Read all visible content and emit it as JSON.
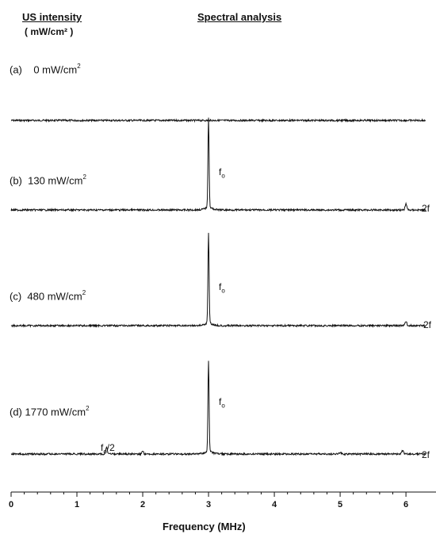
{
  "headers": {
    "left_title": "US intensity",
    "left_unit": "( mW/cm² )",
    "right_title": "Spectral analysis"
  },
  "chart_data": {
    "type": "line",
    "xlabel": "Frequency (MHz)",
    "xlim": [
      0,
      6.3
    ],
    "x_ticks": [
      "0",
      "1",
      "2",
      "3",
      "4",
      "5",
      "6"
    ],
    "series": [
      {
        "label_prefix": "(a)",
        "label_value": "0 mW/cm",
        "label_sup": "2",
        "peaks": [],
        "annotations": []
      },
      {
        "label_prefix": "(b)",
        "label_value": "130 mW/cm",
        "label_sup": "2",
        "peaks": [
          {
            "x": 3.0,
            "amplitude": 1.0
          },
          {
            "x": 6.0,
            "amplitude": 0.07
          }
        ],
        "annotations": [
          {
            "text": "f",
            "sub": "o",
            "x": 3.0
          },
          {
            "text": "2f",
            "sub": "",
            "x": 6.0
          }
        ]
      },
      {
        "label_prefix": "(c)",
        "label_value": "480 mW/cm",
        "label_sup": "2",
        "peaks": [
          {
            "x": 3.0,
            "amplitude": 1.0
          },
          {
            "x": 6.0,
            "amplitude": 0.05
          }
        ],
        "annotations": [
          {
            "text": "f",
            "sub": "o",
            "x": 3.0
          },
          {
            "text": "2f",
            "sub": "",
            "x": 6.0
          }
        ]
      },
      {
        "label_prefix": "(d)",
        "label_value": "1770 mW/cm",
        "label_sup": "2",
        "peaks": [
          {
            "x": 1.45,
            "amplitude": 0.08
          },
          {
            "x": 2.0,
            "amplitude": 0.03
          },
          {
            "x": 3.0,
            "amplitude": 1.0
          },
          {
            "x": 5.0,
            "amplitude": 0.02
          },
          {
            "x": 5.95,
            "amplitude": 0.04
          }
        ],
        "annotations": [
          {
            "text": "f",
            "sub": "o",
            "x": 3.0
          },
          {
            "text": "f",
            "sub": "o",
            "tail": "/2",
            "x": 1.45
          },
          {
            "text": "2f",
            "sub": "",
            "x": 6.0
          }
        ]
      }
    ]
  }
}
